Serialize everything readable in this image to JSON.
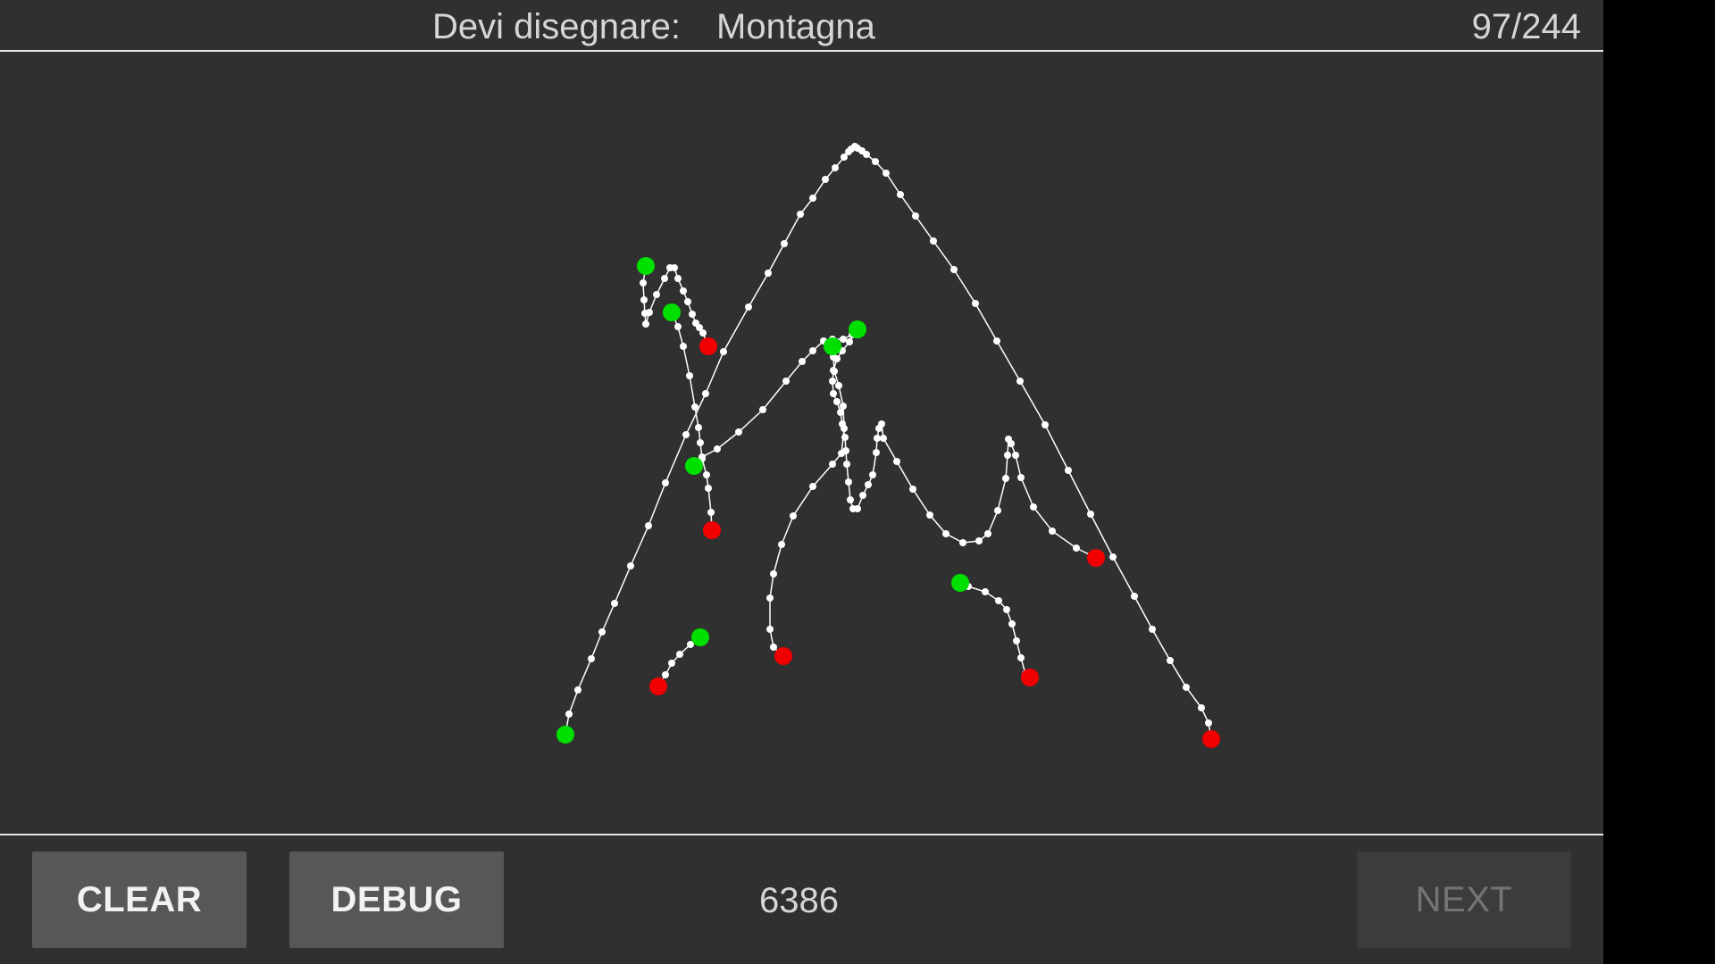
{
  "header": {
    "prompt_label": "Devi disegnare:",
    "prompt_word": "Montagna",
    "progress": "97/244"
  },
  "footer": {
    "clear_label": "CLEAR",
    "debug_label": "DEBUG",
    "stroke_counter": "6386",
    "next_label": "NEXT"
  },
  "colors": {
    "background": "#303030",
    "stroke": "#ffffff",
    "stroke_start": "#00e000",
    "stroke_end": "#f00000",
    "button": "#575757",
    "button_disabled": "#3c3c3c"
  }
}
